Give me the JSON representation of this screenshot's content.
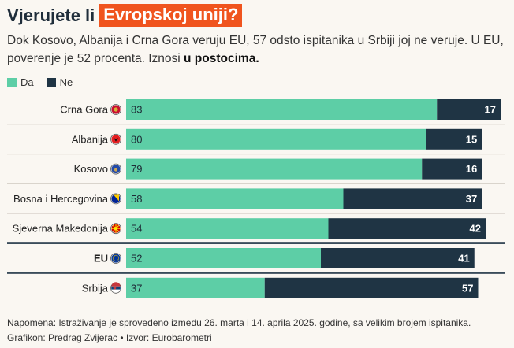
{
  "header": {
    "title_plain": "Vjerujete li",
    "title_highlight": "Evropskoj uniji?",
    "subtitle_text": "Dok Kosovo, Albanija i Crna Gora veruju EU, 57 odsto ispitanika u Srbiji joj ne veruje. U EU, poverenje je 52 procenta. Iznosi ",
    "subtitle_bold": "u postocima."
  },
  "legend": [
    {
      "label": "Da",
      "color": "#5dcea6"
    },
    {
      "label": "Ne",
      "color": "#1f3444"
    }
  ],
  "colors": {
    "da": "#5dcea6",
    "ne": "#1f3444",
    "accent": "#f0541e",
    "divider_dark": "#1f3444"
  },
  "chart_data": {
    "type": "bar",
    "orientation": "horizontal",
    "stacked": true,
    "categories": [
      "Crna Gora",
      "Albanija",
      "Kosovo",
      "Bosna i Hercegovina",
      "Sjeverna Makedonija",
      "EU",
      "Srbija"
    ],
    "bold_categories": [
      "EU"
    ],
    "flag_icons": [
      "montenegro-flag-icon",
      "albania-flag-icon",
      "kosovo-flag-icon",
      "bosnia-flag-icon",
      "north-macedonia-flag-icon",
      "eu-flag-icon",
      "serbia-flag-icon"
    ],
    "series": [
      {
        "name": "Da",
        "values": [
          83,
          80,
          79,
          58,
          54,
          52,
          37
        ]
      },
      {
        "name": "Ne",
        "values": [
          17,
          15,
          16,
          37,
          42,
          41,
          57
        ]
      }
    ],
    "xlim": [
      0,
      100
    ],
    "legend_position": "top-left"
  },
  "footer": {
    "note": "Napomena: Istraživanje je sprovedeno između 26. marta i 14. aprila 2025. godine, sa velikim brojem ispitanika.",
    "credit": "Grafikon: Predrag Zvijerac • Izvor: Eurobarometri"
  }
}
